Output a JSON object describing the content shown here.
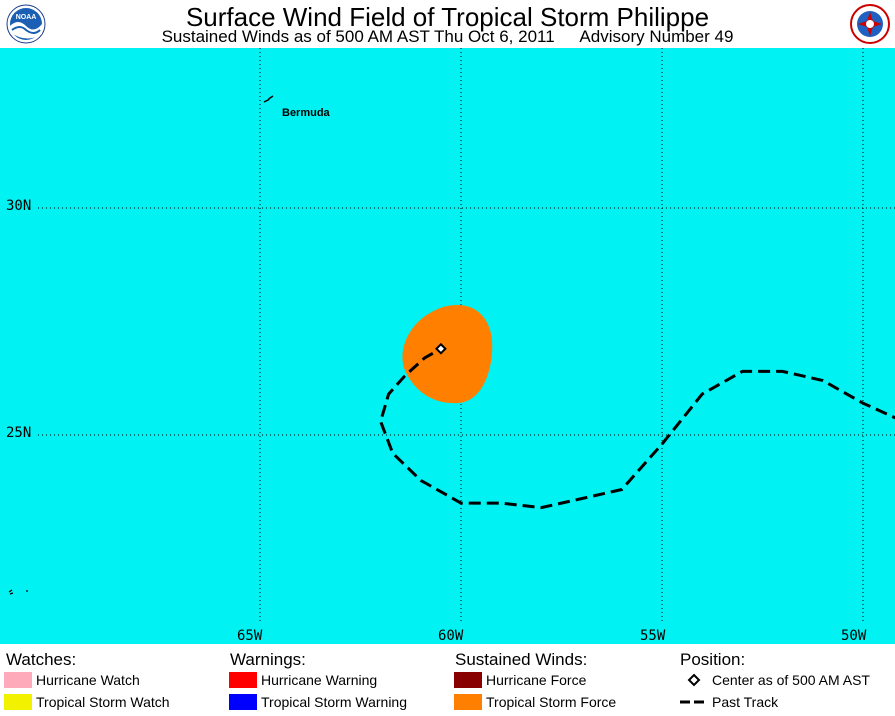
{
  "header": {
    "title": "Surface Wind Field of Tropical Storm Philippe",
    "subtitle_left": "Sustained Winds as of 500 AM AST Thu Oct 6, 2011",
    "subtitle_right": "Advisory Number 49",
    "logo_left_icon": "noaa-logo-icon",
    "logo_right_icon": "nws-logo-icon"
  },
  "map": {
    "background_color": "#00f2f2",
    "lat_labels": [
      "30N",
      "25N"
    ],
    "lon_labels": [
      "65W",
      "60W",
      "55W",
      "50W"
    ],
    "places": [
      {
        "name": "Bermuda",
        "lat": 32.3,
        "lon": -64.8
      }
    ],
    "storm_center": {
      "lat": 26.9,
      "lon": -60.5
    },
    "wind_field_color": "#ff8000",
    "past_track": [
      [
        -49.0,
        25.3
      ],
      [
        -50.0,
        25.7
      ],
      [
        -51.0,
        26.2
      ],
      [
        -52.0,
        26.4
      ],
      [
        -53.0,
        26.4
      ],
      [
        -54.0,
        25.9
      ],
      [
        -55.0,
        24.8
      ],
      [
        -56.0,
        23.8
      ],
      [
        -57.0,
        23.6
      ],
      [
        -58.0,
        23.4
      ],
      [
        -59.0,
        23.5
      ],
      [
        -60.0,
        23.5
      ],
      [
        -61.0,
        24.0
      ],
      [
        -61.7,
        24.6
      ],
      [
        -62.0,
        25.3
      ],
      [
        -61.8,
        25.9
      ],
      [
        -61.4,
        26.3
      ],
      [
        -60.9,
        26.7
      ],
      [
        -60.5,
        26.9
      ]
    ]
  },
  "legend": {
    "watches": {
      "heading": "Watches:",
      "items": [
        {
          "label": "Hurricane Watch",
          "color": "#ffaabb"
        },
        {
          "label": "Tropical Storm Watch",
          "color": "#f2f200"
        }
      ]
    },
    "warnings": {
      "heading": "Warnings:",
      "items": [
        {
          "label": "Hurricane Warning",
          "color": "#ff0000"
        },
        {
          "label": "Tropical Storm Warning",
          "color": "#0000ff"
        }
      ]
    },
    "winds": {
      "heading": "Sustained Winds:",
      "items": [
        {
          "label": "Hurricane Force",
          "color": "#880000"
        },
        {
          "label": "Tropical Storm Force",
          "color": "#ff8000"
        }
      ]
    },
    "position": {
      "heading": "Position:",
      "items": [
        {
          "label": "Center as of 500 AM AST",
          "icon": "diamond-icon"
        },
        {
          "label": "Past Track",
          "icon": "dashed-line-icon"
        }
      ]
    }
  }
}
